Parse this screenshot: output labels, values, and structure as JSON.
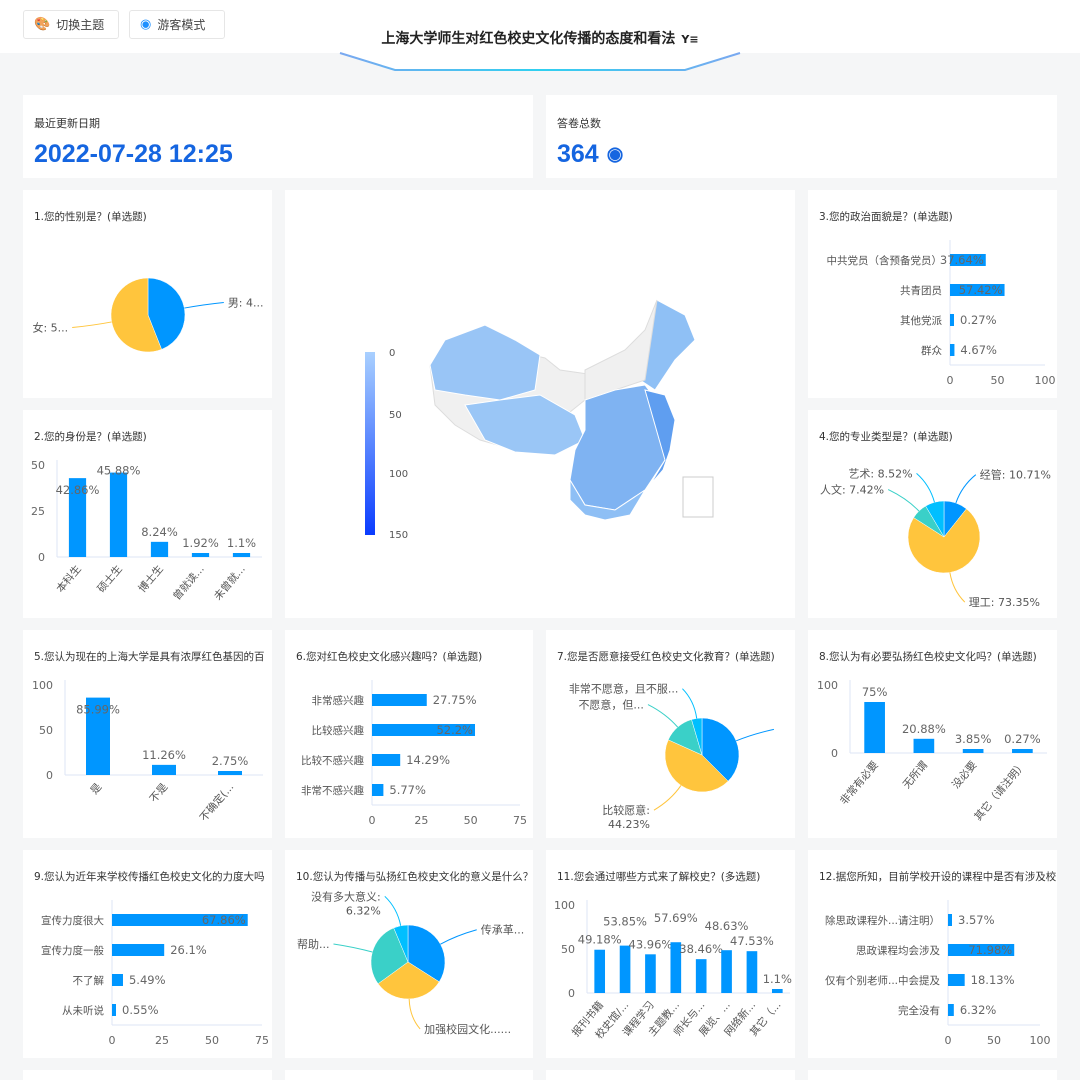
{
  "header": {
    "theme_button": "切换主题",
    "guest_button": "游客模式",
    "title": "上海大学师生对红色校史文化传播的态度和看法",
    "filter_icon": "filter-icon",
    "theme_icon": "palette-icon",
    "guest_icon": "eye-icon"
  },
  "stats": {
    "updated_label": "最近更新日期",
    "updated_value": "2022-07-28 12:25",
    "total_label": "答卷总数",
    "total_value": "364",
    "total_icon": "eye-icon"
  },
  "colors": {
    "bar": "#0096ff",
    "blue": "#0096ff",
    "yellow": "#ffc53d",
    "teal": "#3ad0c8",
    "cyan": "#00bfff",
    "accent": "#1565e0"
  },
  "map": {
    "visual_map_ticks": [
      "0",
      "50",
      "100",
      "150"
    ],
    "range": [
      0,
      150
    ]
  },
  "chart_data": [
    {
      "type": "pie",
      "title": "1.您的性别是？(单选题)",
      "labels": [
        "男: 4...",
        "女: 5..."
      ],
      "values": [
        44,
        56
      ],
      "colors": [
        "#0096ff",
        "#ffc53d"
      ]
    },
    {
      "type": "bar",
      "title": "2.您的身份是？(单选题)",
      "categories": [
        "本科生",
        "硕士生",
        "博士生",
        "曾就读...",
        "未曾就..."
      ],
      "values": [
        42.86,
        45.88,
        8.24,
        1.92,
        1.1
      ],
      "data_labels": [
        "42.86%",
        "45.88%",
        "8.24%",
        "1.92%",
        "1.1%"
      ],
      "ylim": [
        0,
        50
      ],
      "yticks": [
        "0",
        "25",
        "50"
      ]
    },
    {
      "type": "bar",
      "orientation": "horizontal",
      "title": "3.您的政治面貌是？(单选题)",
      "categories": [
        "中共党员（含预备党员）",
        "共青团员",
        "其他党派",
        "群众"
      ],
      "values": [
        37.64,
        57.42,
        0.27,
        4.67
      ],
      "data_labels": [
        "37.64%",
        "57.42%",
        "0.27%",
        "4.67%"
      ],
      "xlim": [
        0,
        100
      ],
      "xticks": [
        "0",
        "50",
        "100"
      ]
    },
    {
      "type": "pie",
      "title": "4.您的专业类型是？(单选题)",
      "labels": [
        "经管: 10.71%",
        "理工: 73.35%",
        "人文: 7.42%",
        "艺术: 8.52%"
      ],
      "values": [
        10.71,
        73.35,
        7.42,
        8.52
      ],
      "colors": [
        "#0096ff",
        "#ffc53d",
        "#3ad0c8",
        "#00bfff"
      ]
    },
    {
      "type": "bar",
      "title": "5.您认为现在的上海大学是具有浓厚红色基因的百",
      "categories": [
        "是",
        "不是",
        "不确定(..."
      ],
      "values": [
        85.99,
        11.26,
        2.75
      ],
      "data_labels": [
        "85.99%",
        "11.26%",
        "2.75%"
      ],
      "ylim": [
        0,
        100
      ],
      "yticks": [
        "0",
        "50",
        "100"
      ]
    },
    {
      "type": "bar",
      "orientation": "horizontal",
      "title": "6.您对红色校史文化感兴趣吗？(单选题)",
      "categories": [
        "非常感兴趣",
        "比较感兴趣",
        "比较不感兴趣",
        "非常不感兴趣"
      ],
      "values": [
        27.75,
        52.2,
        14.29,
        5.77
      ],
      "data_labels": [
        "27.75%",
        "52.2%",
        "14.29%",
        "5.77%"
      ],
      "xlim": [
        0,
        75
      ],
      "xticks": [
        "0",
        "25",
        "50",
        "75"
      ]
    },
    {
      "type": "pie",
      "title": "7.您是否愿意接受红色校史文化教育？(单选题)",
      "labels": [
        "",
        "比较愿意:\n44.23%",
        "不愿意，但...",
        "非常不愿意，且不服..."
      ],
      "values": [
        37.5,
        44.23,
        13.7,
        4.57
      ],
      "colors": [
        "#0096ff",
        "#ffc53d",
        "#3ad0c8",
        "#00bfff"
      ]
    },
    {
      "type": "bar",
      "title": "8.您认为有必要弘扬红色校史文化吗？(单选题)",
      "categories": [
        "非常有必要",
        "无所谓",
        "没必要",
        "其它（请注明）"
      ],
      "values": [
        75,
        20.88,
        3.85,
        0.27
      ],
      "data_labels": [
        "75%",
        "20.88%",
        "3.85%",
        "0.27%"
      ],
      "ylim": [
        0,
        100
      ],
      "yticks": [
        "0",
        "100"
      ]
    },
    {
      "type": "bar",
      "orientation": "horizontal",
      "title": "9.您认为近年来学校传播红色校史文化的力度大吗",
      "categories": [
        "宣传力度很大",
        "宣传力度一般",
        "不了解",
        "从未听说"
      ],
      "values": [
        67.86,
        26.1,
        5.49,
        0.55
      ],
      "data_labels": [
        "67.86%",
        "26.1%",
        "5.49%",
        "0.55%"
      ],
      "xlim": [
        0,
        75
      ],
      "xticks": [
        "0",
        "25",
        "50",
        "75"
      ]
    },
    {
      "type": "pie",
      "title": "10.您认为传播与弘扬红色校史文化的意义是什么？",
      "labels": [
        "传承革...",
        "加强校园文化......",
        "帮助...",
        "没有多大意义:\n6.32%"
      ],
      "values": [
        34,
        31,
        28.68,
        6.32
      ],
      "colors": [
        "#0096ff",
        "#ffc53d",
        "#3ad0c8",
        "#00bfff"
      ]
    },
    {
      "type": "bar",
      "title": "11.您会通过哪些方式来了解校史？(多选题)",
      "categories": [
        "报刊书籍",
        "校史馆/...",
        "课程学习",
        "主题教...",
        "师长与...",
        "展览、...",
        "网络新...",
        "其它（..."
      ],
      "values": [
        49.18,
        53.85,
        43.96,
        57.69,
        38.46,
        48.63,
        47.53,
        1.1
      ],
      "data_labels": [
        "49.18%",
        "53.85%",
        "43.96%",
        "57.69%",
        "38.46%",
        "48.63%",
        "47.53%",
        "1.1%"
      ],
      "ylim": [
        0,
        100
      ],
      "yticks": [
        "0",
        "50",
        "100"
      ]
    },
    {
      "type": "bar",
      "orientation": "horizontal",
      "title": "12.据您所知，目前学校开设的课程中是否有涉及校",
      "categories": [
        "除思政课程外...请注明）",
        "思政课程均会涉及",
        "仅有个别老师...中会提及",
        "完全没有"
      ],
      "values": [
        3.57,
        71.98,
        18.13,
        6.32
      ],
      "data_labels": [
        "3.57%",
        "71.98%",
        "18.13%",
        "6.32%"
      ],
      "xlim": [
        0,
        100
      ],
      "xticks": [
        "0",
        "50",
        "100"
      ]
    }
  ]
}
